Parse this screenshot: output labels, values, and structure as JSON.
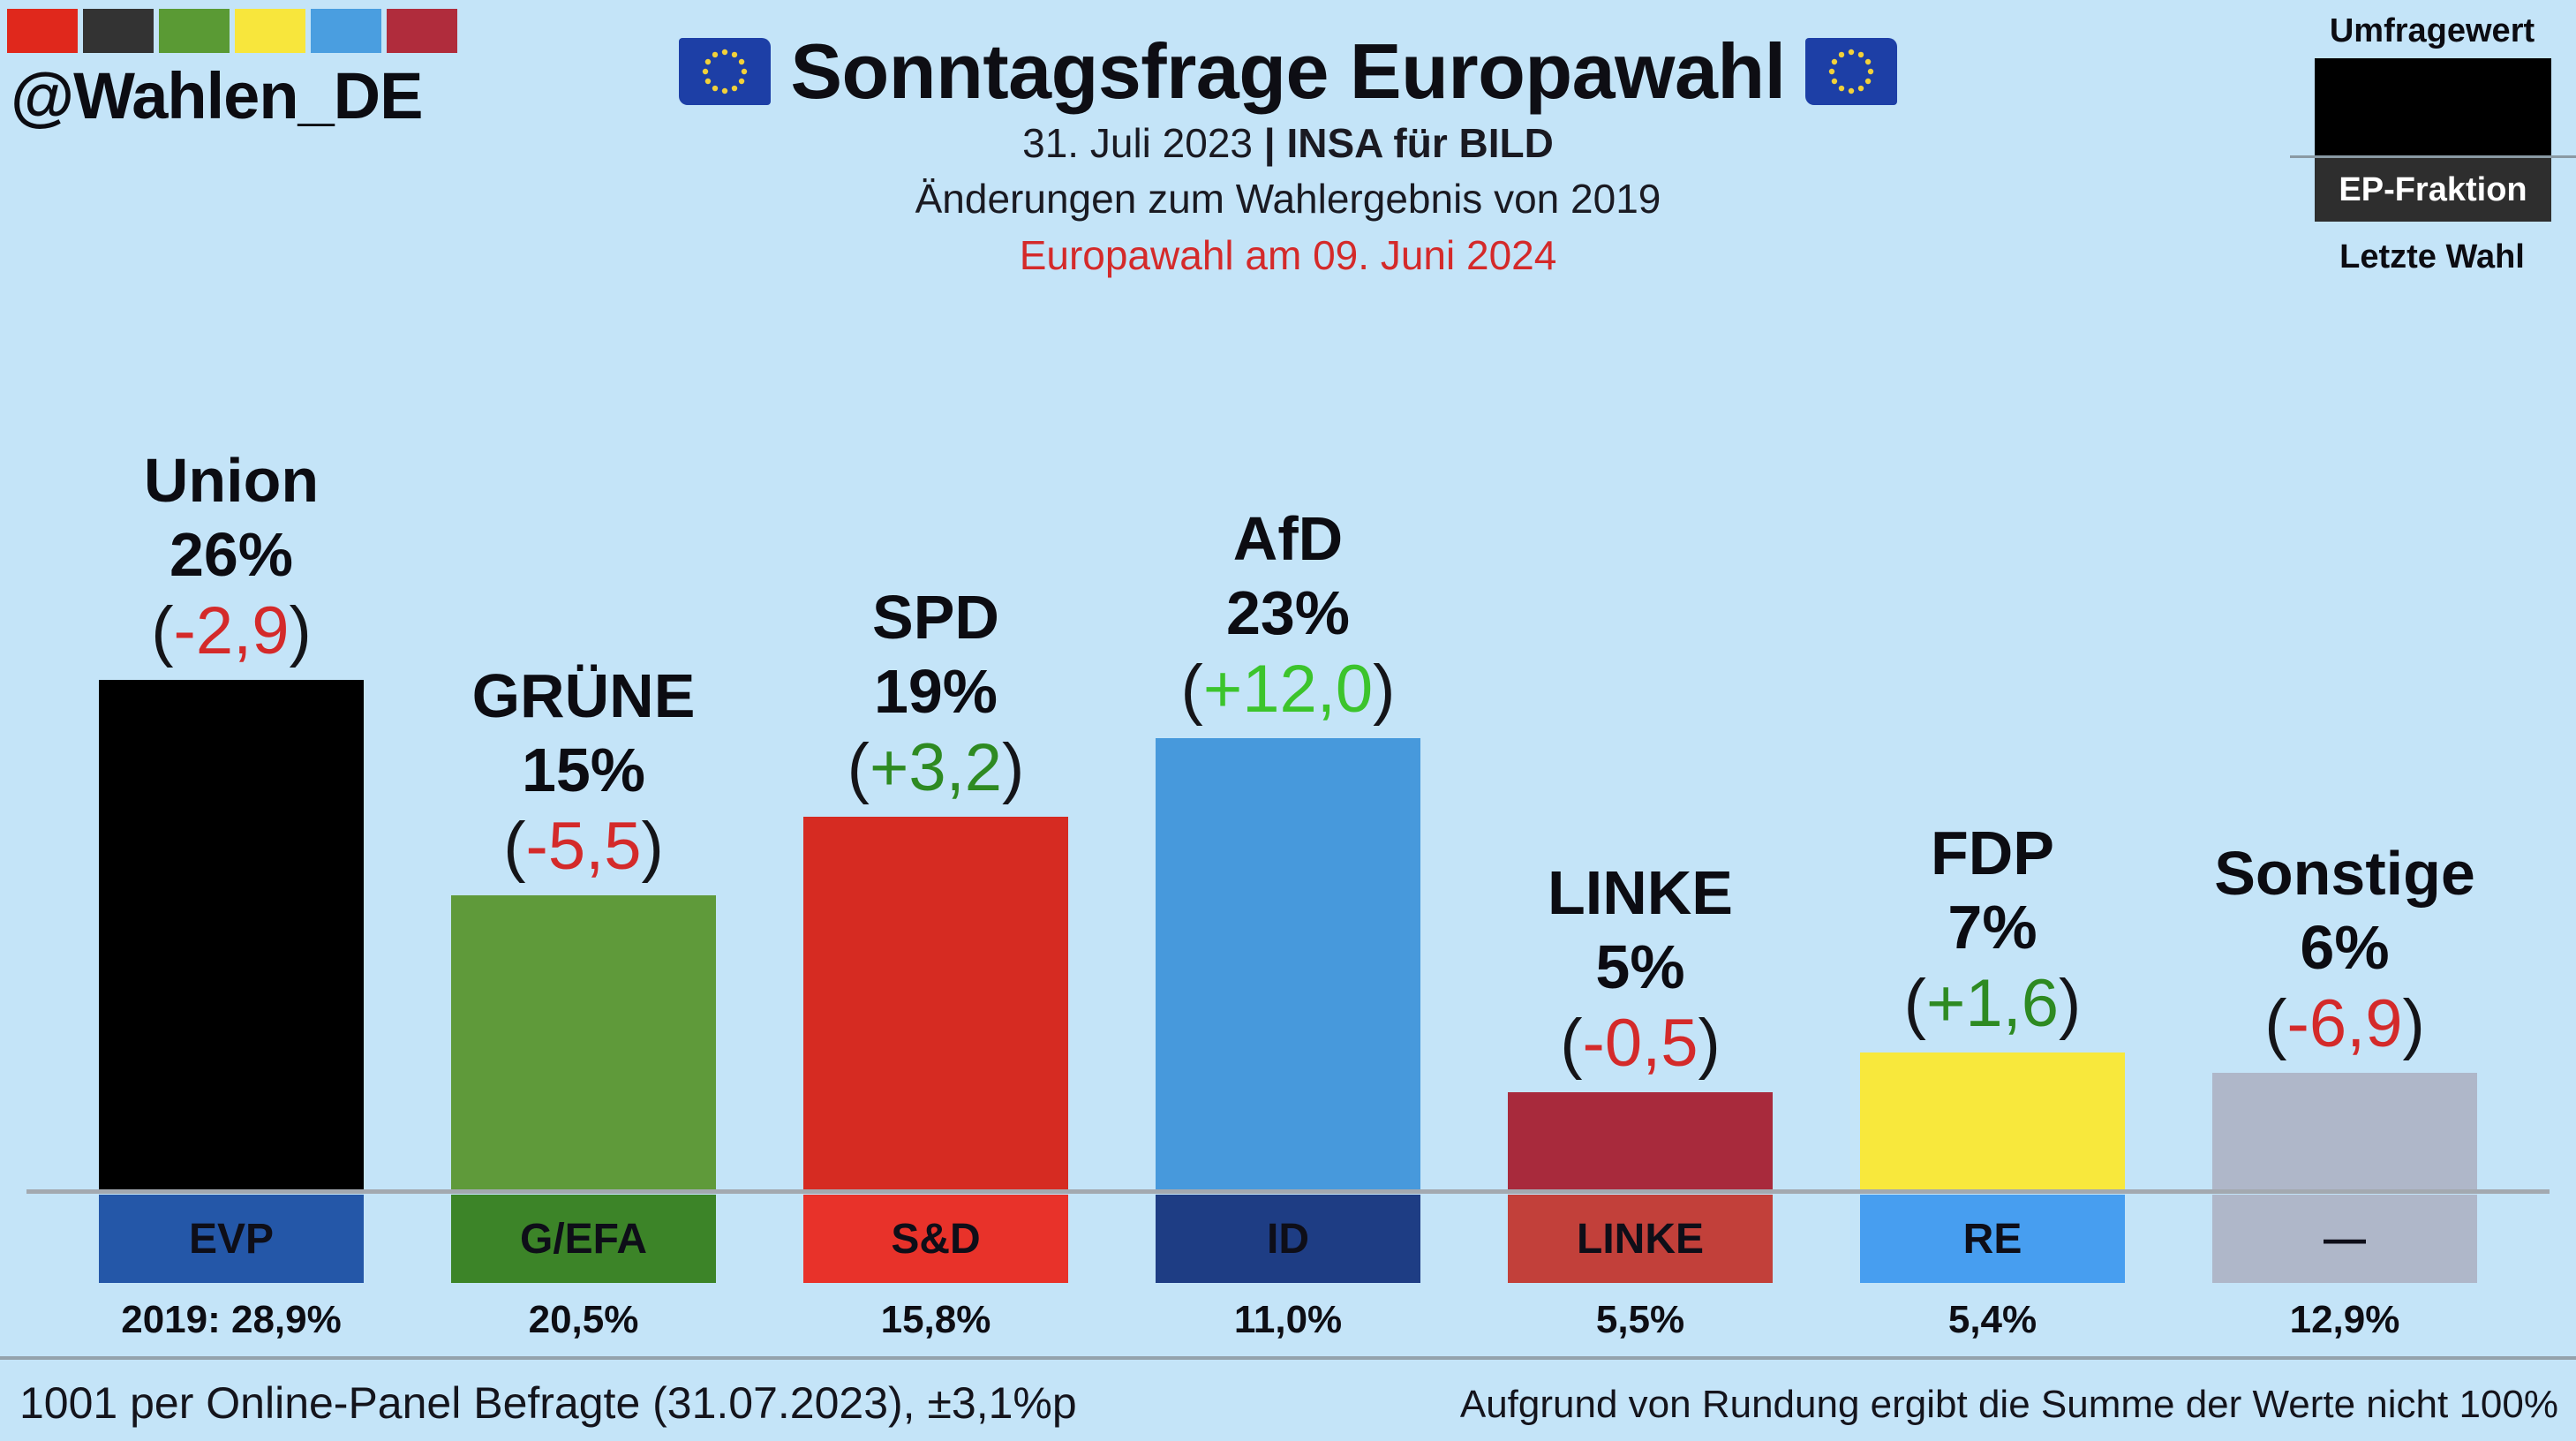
{
  "header": {
    "handle": "@Wahlen_DE",
    "swatch_colors": [
      "#e0281c",
      "#333333",
      "#5a9a34",
      "#f8e63c",
      "#4a9ee0",
      "#b02c3c"
    ],
    "title": "Sonntagsfrage Europawahl",
    "flag_icon": "eu-flag",
    "date": "31. Juli 2023",
    "separator": "|",
    "institute": "INSA für BILD",
    "subtitle": "Änderungen zum Wahlergebnis von 2019",
    "election_note": "Europawahl am 09. Juni 2024"
  },
  "legend": {
    "top_label": "Umfragewert",
    "group_label": "EP-Fraktion",
    "bottom_label": "Letzte Wahl"
  },
  "chart_data": {
    "type": "bar",
    "title": "Sonntagsfrage Europawahl",
    "xlabel": "",
    "ylabel": "",
    "ylim": [
      0,
      30
    ],
    "categories": [
      "Union",
      "GRÜNE",
      "SPD",
      "AfD",
      "LINKE",
      "FDP",
      "Sonstige"
    ],
    "values": [
      26,
      15,
      19,
      23,
      5,
      7,
      6
    ],
    "pct_labels": [
      "26%",
      "15%",
      "19%",
      "23%",
      "5%",
      "7%",
      "6%"
    ],
    "changes": [
      "-2,9",
      "-5,5",
      "+3,2",
      "+12,0",
      "-0,5",
      "+1,6",
      "-6,9"
    ],
    "change_colors": [
      "#d42a2a",
      "#d42a2a",
      "#2e8a22",
      "#3cc42c",
      "#d42a2a",
      "#2e8a22",
      "#d42a2a"
    ],
    "bar_colors": [
      "#000000",
      "#5f9a3a",
      "#d62b22",
      "#4799dc",
      "#a82a3c",
      "#f8e83c",
      "#afb7c9"
    ],
    "ep_groups": [
      "EVP",
      "G/EFA",
      "S&D",
      "ID",
      "LINKE",
      "RE",
      "—"
    ],
    "ep_group_colors": [
      "#2457a8",
      "#3c8428",
      "#e8322a",
      "#1e3d84",
      "#c2403a",
      "#479ef0",
      "#afb7c9"
    ],
    "previous_results": [
      "2019: 28,9%",
      "20,5%",
      "15,8%",
      "11,0%",
      "5,5%",
      "5,4%",
      "12,9%"
    ],
    "previous_values": [
      28.9,
      20.5,
      15.8,
      11.0,
      5.5,
      5.4,
      12.9
    ],
    "grid": false,
    "legend": "top-right"
  },
  "footer": {
    "sample": "1001 per Online-Panel Befragte (31.07.2023), ±3,1%p",
    "rounding_note": "Aufgrund von Rundung ergibt die Summe der Werte nicht 100%"
  }
}
